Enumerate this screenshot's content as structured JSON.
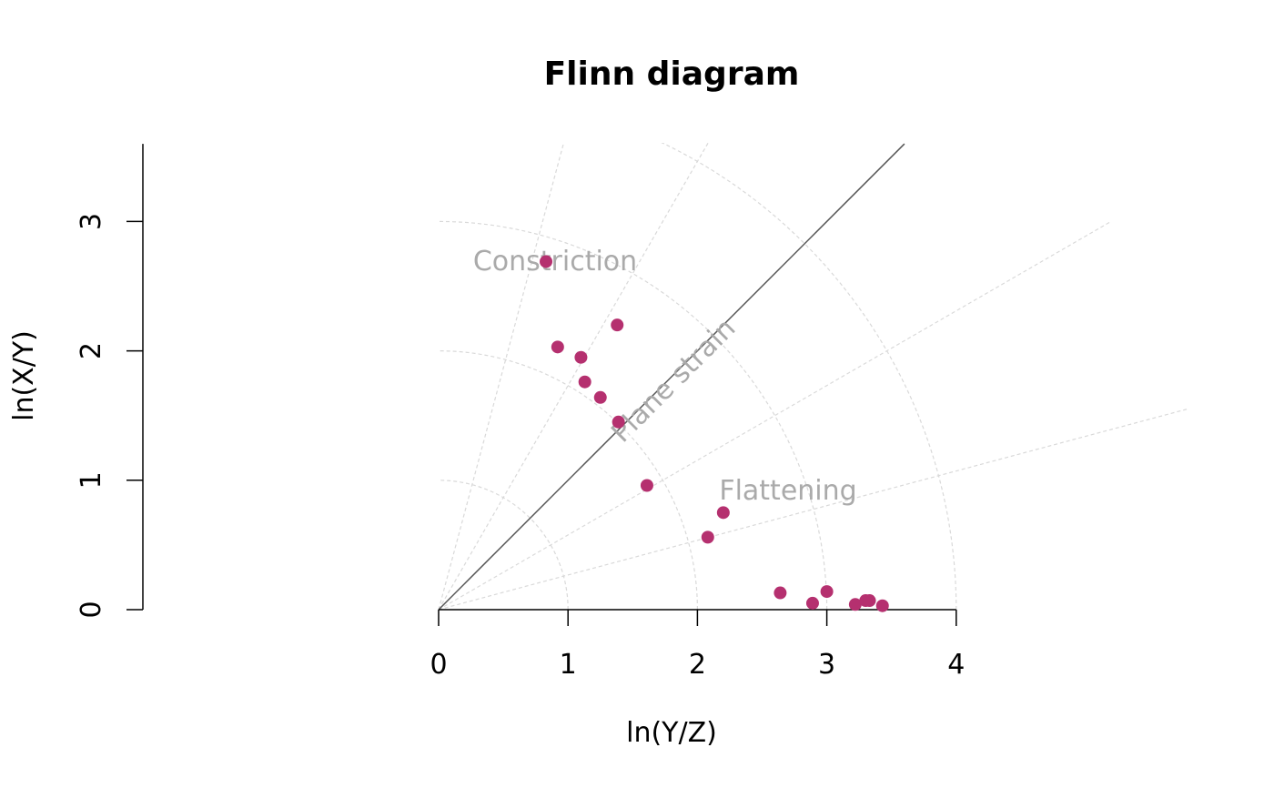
{
  "chart_data": {
    "type": "scatter",
    "title": "Flinn diagram",
    "xlabel": "ln(Y/Z)",
    "ylabel": "ln(X/Y)",
    "xlim": [
      0,
      4
    ],
    "ylim": [
      0,
      3.6
    ],
    "x_ticks": [
      "0",
      "1",
      "2",
      "3",
      "4"
    ],
    "y_ticks": [
      "0",
      "1",
      "2",
      "3"
    ],
    "grid": "radial",
    "radial_grid_radii": [
      1,
      2,
      3,
      4
    ],
    "radial_grid_angles_deg": [
      15,
      30,
      60,
      75
    ],
    "reference_line": {
      "label": "Plane strain",
      "slope": 1
    },
    "region_labels": {
      "constriction": "Constriction",
      "flattening": "Flattening"
    },
    "point_color": "#b5306f",
    "reference_line_color": "#555555",
    "grid_color": "#d9d9d9",
    "points": [
      {
        "x": 0.83,
        "y": 2.69
      },
      {
        "x": 0.92,
        "y": 2.03
      },
      {
        "x": 1.1,
        "y": 1.95
      },
      {
        "x": 1.13,
        "y": 1.76
      },
      {
        "x": 1.25,
        "y": 1.64
      },
      {
        "x": 1.38,
        "y": 2.2
      },
      {
        "x": 1.39,
        "y": 1.45
      },
      {
        "x": 1.61,
        "y": 0.96
      },
      {
        "x": 2.08,
        "y": 0.56
      },
      {
        "x": 2.2,
        "y": 0.75
      },
      {
        "x": 2.64,
        "y": 0.13
      },
      {
        "x": 2.89,
        "y": 0.05
      },
      {
        "x": 3.0,
        "y": 0.14
      },
      {
        "x": 3.22,
        "y": 0.04
      },
      {
        "x": 3.3,
        "y": 0.07
      },
      {
        "x": 3.33,
        "y": 0.07
      },
      {
        "x": 3.43,
        "y": 0.03
      }
    ]
  }
}
